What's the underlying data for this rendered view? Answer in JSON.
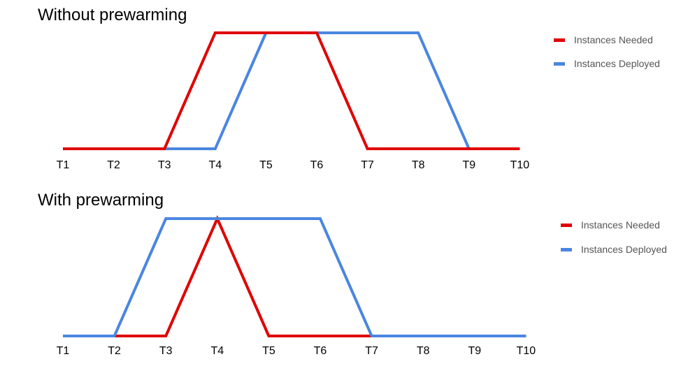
{
  "chart_data": [
    {
      "type": "line",
      "title": "Without prewarming",
      "categories": [
        "T1",
        "T2",
        "T3",
        "T4",
        "T5",
        "T6",
        "T7",
        "T8",
        "T9",
        "T10"
      ],
      "series": [
        {
          "name": "Instances Needed",
          "color": "#e00000",
          "values": [
            0,
            0,
            0,
            1,
            1,
            1,
            0,
            0,
            0,
            0
          ]
        },
        {
          "name": "Instances Deployed",
          "color": "#4a86e0",
          "values": [
            0,
            0,
            0,
            0,
            1,
            1,
            1,
            1,
            0,
            0
          ]
        }
      ],
      "ylim": [
        0,
        1
      ],
      "grid": false,
      "legend": "right"
    },
    {
      "type": "line",
      "title": "With prewarming",
      "categories": [
        "T1",
        "T2",
        "T3",
        "T4",
        "T5",
        "T6",
        "T7",
        "T8",
        "T9",
        "T10"
      ],
      "series": [
        {
          "name": "Instances Needed",
          "color": "#e00000",
          "values": [
            0,
            0,
            0,
            1,
            0,
            0,
            0,
            0,
            0,
            0
          ]
        },
        {
          "name": "Instances Deployed",
          "color": "#4a86e0",
          "values": [
            0,
            0,
            1,
            1,
            1,
            1,
            0,
            0,
            0,
            0
          ]
        }
      ],
      "ylim": [
        0,
        1
      ],
      "grid": false,
      "legend": "right"
    }
  ]
}
